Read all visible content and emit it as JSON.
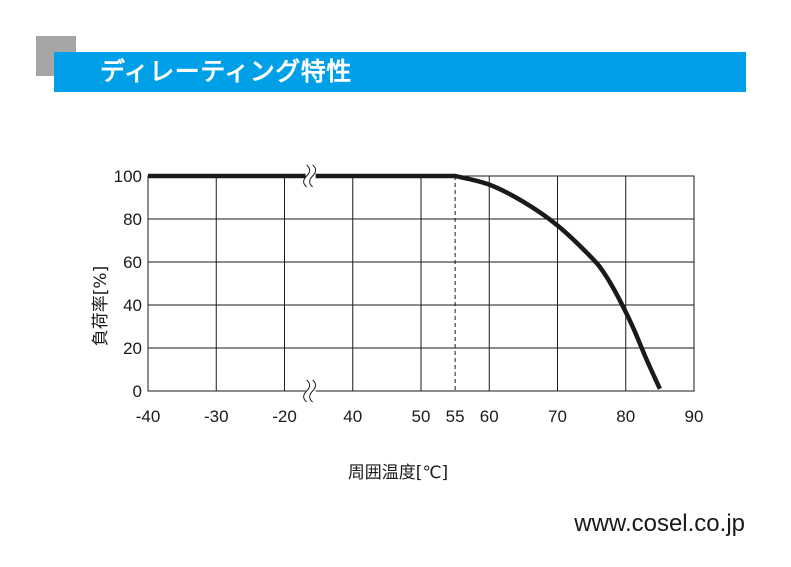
{
  "header": {
    "title": "ディレーティング特性",
    "accent_color": "#00a0e9",
    "corner_color": "#a6a6a6"
  },
  "footer": {
    "url": "www.cosel.co.jp"
  },
  "chart_data": {
    "type": "line",
    "title": "",
    "xlabel": "周囲温度[℃]",
    "ylabel": "負荷率[%]",
    "grid": true,
    "axis_break": {
      "between": [
        -30,
        40
      ],
      "symbol": "≈"
    },
    "x_ticks": [
      -40,
      -30,
      -20,
      40,
      50,
      55,
      60,
      70,
      80,
      90
    ],
    "x_tick_labels": [
      "-40",
      "-30",
      "-20",
      "40",
      "50",
      "55",
      "60",
      "70",
      "80",
      "90"
    ],
    "y_ticks": [
      0,
      20,
      40,
      60,
      80,
      100
    ],
    "y_tick_labels": [
      "0",
      "20",
      "40",
      "60",
      "80",
      "100"
    ],
    "ylim": [
      0,
      100
    ],
    "xlim": [
      -40,
      90
    ],
    "reference_line": {
      "x": 55,
      "style": "dashed"
    },
    "series": [
      {
        "color": "#1a1a1a",
        "points": [
          [
            -40,
            100
          ],
          [
            55,
            100
          ],
          [
            60,
            96
          ],
          [
            65,
            88
          ],
          [
            70,
            77
          ],
          [
            75,
            62
          ],
          [
            77,
            54
          ],
          [
            79,
            43
          ],
          [
            81,
            30
          ],
          [
            83,
            15
          ],
          [
            85,
            1
          ]
        ]
      }
    ]
  }
}
